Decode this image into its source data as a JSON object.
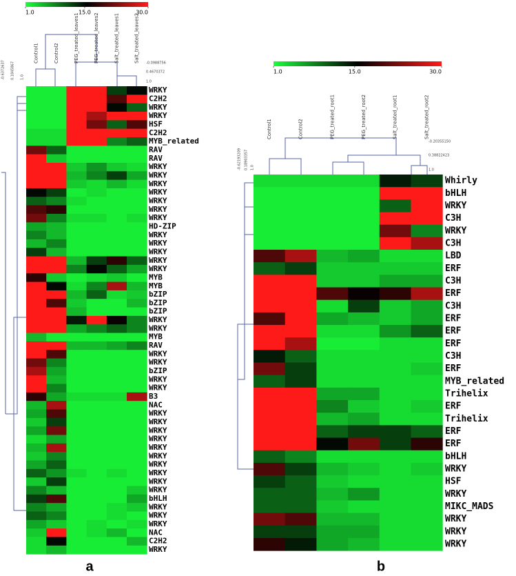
{
  "chart_data": [
    {
      "type": "heatmap",
      "panel_label": "a",
      "columns": [
        "Control1",
        "Control2",
        "PEG_treated_leaves1",
        "PEG_treated_leaves2",
        "Salt_treated_leaves1",
        "Salt_treated_leaves2"
      ],
      "rows": [
        "WRKY",
        "C2H2",
        "WRKY",
        "WRKY",
        "HSF",
        "C2H2",
        "MYB_related",
        "RAV",
        "RAV",
        "WRKY",
        "WRKY",
        "WRKY",
        "WRKY",
        "WRKY",
        "WRKY",
        "WRKY",
        "HD-ZIP",
        "WRKY",
        "WRKY",
        "WRKY",
        "WRKY",
        "WRKY",
        "MYB",
        "MYB",
        "bZIP",
        "bZIP",
        "bZIP",
        "WRKY",
        "WRKY",
        "MYB",
        "RAV",
        "WRKY",
        "WRKY",
        "bZIP",
        "WRKY",
        "WRKY",
        "B3",
        "NAC",
        "WRKY",
        "WRKY",
        "WRKY",
        "WRKY",
        "WRKY",
        "WRKY",
        "WRKY",
        "WRKY",
        "WRKY",
        "WRKY",
        "bHLH",
        "WRKY",
        "WRKY",
        "WRKY",
        "NAC",
        "C2H2",
        "WRKY"
      ],
      "values": [
        [
          2,
          2,
          30,
          30,
          12,
          15
        ],
        [
          2,
          2,
          30,
          30,
          20,
          30
        ],
        [
          2,
          2,
          30,
          30,
          15,
          10
        ],
        [
          2,
          2,
          30,
          25,
          30,
          30
        ],
        [
          2,
          2,
          30,
          22,
          10,
          20
        ],
        [
          3,
          3,
          30,
          30,
          30,
          30
        ],
        [
          3,
          3,
          30,
          30,
          8,
          10
        ],
        [
          22,
          10,
          2,
          2,
          2,
          2
        ],
        [
          30,
          4,
          2,
          2,
          2,
          2
        ],
        [
          30,
          30,
          4,
          7,
          4,
          3
        ],
        [
          30,
          30,
          5,
          8,
          12,
          6
        ],
        [
          30,
          30,
          4,
          3,
          5,
          3
        ],
        [
          15,
          12,
          2,
          3,
          2,
          2
        ],
        [
          10,
          8,
          3,
          2,
          2,
          2
        ],
        [
          20,
          18,
          2,
          2,
          2,
          2
        ],
        [
          22,
          8,
          3,
          3,
          2,
          3
        ],
        [
          6,
          5,
          2,
          2,
          2,
          2
        ],
        [
          8,
          5,
          2,
          2,
          2,
          2
        ],
        [
          5,
          8,
          2,
          2,
          2,
          2
        ],
        [
          12,
          5,
          2,
          2,
          2,
          2
        ],
        [
          30,
          30,
          5,
          12,
          18,
          10
        ],
        [
          30,
          30,
          8,
          15,
          10,
          6
        ],
        [
          18,
          4,
          2,
          3,
          4,
          2
        ],
        [
          30,
          15,
          3,
          8,
          25,
          5
        ],
        [
          30,
          30,
          5,
          10,
          3,
          4
        ],
        [
          30,
          20,
          4,
          2,
          2,
          5
        ],
        [
          30,
          30,
          5,
          2,
          2,
          2
        ],
        [
          30,
          30,
          14,
          30,
          16,
          8
        ],
        [
          30,
          30,
          6,
          8,
          10,
          8
        ],
        [
          5,
          2,
          2,
          2,
          2,
          2
        ],
        [
          30,
          30,
          5,
          5,
          6,
          8
        ],
        [
          30,
          20,
          2,
          2,
          2,
          2
        ],
        [
          22,
          8,
          2,
          2,
          2,
          2
        ],
        [
          25,
          6,
          2,
          2,
          2,
          2
        ],
        [
          30,
          5,
          2,
          2,
          2,
          2
        ],
        [
          30,
          8,
          2,
          2,
          2,
          2
        ],
        [
          18,
          6,
          3,
          3,
          3,
          25
        ],
        [
          5,
          25,
          2,
          2,
          2,
          2
        ],
        [
          6,
          20,
          2,
          2,
          2,
          2
        ],
        [
          4,
          12,
          2,
          2,
          2,
          2
        ],
        [
          6,
          22,
          2,
          2,
          2,
          2
        ],
        [
          3,
          6,
          2,
          2,
          2,
          2
        ],
        [
          5,
          25,
          2,
          2,
          2,
          2
        ],
        [
          4,
          8,
          2,
          2,
          2,
          2
        ],
        [
          6,
          10,
          2,
          2,
          2,
          2
        ],
        [
          10,
          7,
          3,
          2,
          3,
          2
        ],
        [
          4,
          12,
          2,
          2,
          2,
          2
        ],
        [
          8,
          5,
          2,
          2,
          2,
          4
        ],
        [
          12,
          20,
          2,
          2,
          2,
          6
        ],
        [
          8,
          6,
          2,
          2,
          3,
          4
        ],
        [
          10,
          8,
          2,
          2,
          3,
          2
        ],
        [
          6,
          4,
          2,
          3,
          2,
          3
        ],
        [
          4,
          30,
          2,
          3,
          5,
          2
        ],
        [
          3,
          15,
          2,
          2,
          2,
          5
        ],
        [
          3,
          5,
          2,
          2,
          2,
          2
        ]
      ],
      "colorbar": {
        "vlim": [
          1,
          30
        ],
        "colors": [
          "#1aff3a",
          "#000000",
          "#ff1a1a"
        ],
        "ticks": [
          {
            "value": 1,
            "label": "1.0"
          },
          {
            "value": 15,
            "label": "15.0"
          },
          {
            "value": 30,
            "label": "30.0"
          }
        ]
      },
      "column_dendrogram_labels": [
        "-0.0988756",
        "0.4670372",
        "1.0"
      ],
      "row_dendrogram_labels": [
        "-0.6372637",
        "0.1845867",
        "1.0"
      ]
    },
    {
      "type": "heatmap",
      "panel_label": "b",
      "columns": [
        "Control1",
        "Control2",
        "PEG_treated_root1",
        "PEG_treated_root2",
        "Salt_treated_root1",
        "Salt_treated_root2"
      ],
      "rows": [
        "Whirly",
        "bHLH",
        "WRKY",
        "C3H",
        "WRKY",
        "C3H",
        "LBD",
        "ERF",
        "C3H",
        "ERF",
        "C3H",
        "ERF",
        "ERF",
        "ERF",
        "C3H",
        "ERF",
        "MYB_related",
        "Trihelix",
        "ERF",
        "Trihelix",
        "ERF",
        "ERF",
        "bHLH",
        "WRKY",
        "HSF",
        "WRKY",
        "MIKC_MADS",
        "WRKY",
        "WRKY",
        "WRKY"
      ],
      "values": [
        [
          3,
          3,
          3,
          3,
          14,
          12
        ],
        [
          2,
          2,
          2,
          2,
          30,
          30
        ],
        [
          2,
          2,
          2,
          2,
          10,
          30
        ],
        [
          2,
          2,
          2,
          2,
          30,
          30
        ],
        [
          2,
          2,
          2,
          2,
          22,
          8
        ],
        [
          2,
          2,
          2,
          2,
          30,
          25
        ],
        [
          20,
          25,
          5,
          6,
          3,
          3
        ],
        [
          10,
          12,
          4,
          4,
          4,
          4
        ],
        [
          30,
          30,
          4,
          4,
          6,
          6
        ],
        [
          30,
          30,
          20,
          16,
          18,
          25
        ],
        [
          30,
          30,
          3,
          12,
          4,
          6
        ],
        [
          20,
          30,
          6,
          5,
          4,
          6
        ],
        [
          30,
          30,
          3,
          3,
          7,
          10
        ],
        [
          30,
          25,
          2,
          2,
          3,
          3
        ],
        [
          14,
          10,
          3,
          3,
          3,
          3
        ],
        [
          22,
          12,
          3,
          3,
          3,
          4
        ],
        [
          10,
          12,
          3,
          3,
          3,
          3
        ],
        [
          30,
          30,
          6,
          6,
          3,
          3
        ],
        [
          30,
          30,
          8,
          4,
          3,
          4
        ],
        [
          30,
          30,
          5,
          6,
          3,
          3
        ],
        [
          30,
          30,
          10,
          12,
          12,
          10
        ],
        [
          30,
          30,
          15,
          22,
          12,
          18
        ],
        [
          10,
          8,
          3,
          3,
          3,
          3
        ],
        [
          20,
          12,
          5,
          4,
          3,
          4
        ],
        [
          12,
          10,
          4,
          3,
          3,
          3
        ],
        [
          10,
          10,
          5,
          7,
          3,
          3
        ],
        [
          10,
          10,
          4,
          3,
          3,
          3
        ],
        [
          22,
          20,
          5,
          5,
          3,
          3
        ],
        [
          12,
          12,
          6,
          6,
          3,
          3
        ],
        [
          18,
          14,
          6,
          5,
          3,
          3
        ]
      ],
      "colorbar": {
        "vlim": [
          1,
          30
        ],
        "colors": [
          "#1aff3a",
          "#000000",
          "#ff1a1a"
        ],
        "ticks": [
          {
            "value": 1,
            "label": "1.0"
          },
          {
            "value": 15,
            "label": "15.0"
          },
          {
            "value": 30,
            "label": "30.0"
          }
        ]
      },
      "column_dendrogram_labels": [
        "-0.20355150",
        "0.38822423",
        "1.0"
      ],
      "row_dendrogram_labels": [
        "-0.62193209",
        "0.18903357",
        "1.0"
      ]
    }
  ]
}
